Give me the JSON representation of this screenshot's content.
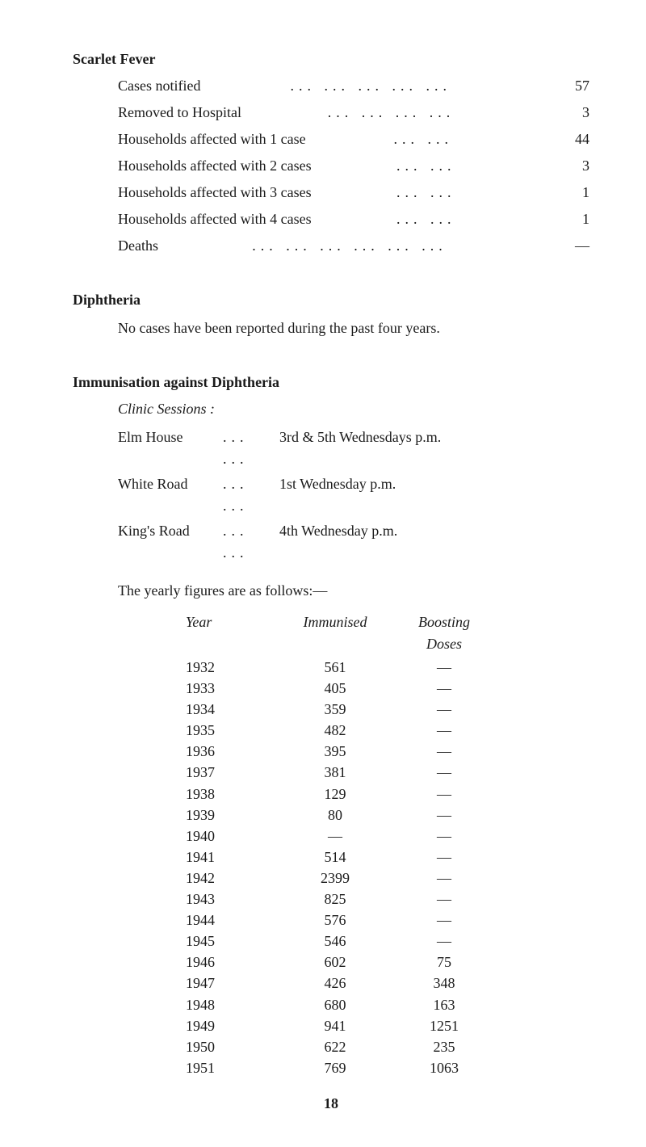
{
  "scarlet_fever": {
    "heading": "Scarlet Fever",
    "rows": [
      {
        "label": "Cases notified",
        "dots": "... ... ... ... ...",
        "value": "57"
      },
      {
        "label": "Removed to Hospital",
        "dots": "... ... ... ...",
        "value": "3"
      },
      {
        "label": "Households affected with 1 case",
        "dots": "... ...",
        "value": "44"
      },
      {
        "label": "Households affected with 2 cases",
        "dots": "... ...",
        "value": "3"
      },
      {
        "label": "Households affected with 3 cases",
        "dots": "... ...",
        "value": "1"
      },
      {
        "label": "Households affected with 4 cases",
        "dots": "... ...",
        "value": "1"
      },
      {
        "label": "Deaths",
        "dots": "... ... ... ... ... ...",
        "value": "—"
      }
    ]
  },
  "diphtheria": {
    "heading": "Diphtheria",
    "text": "No cases have been reported during the past four years."
  },
  "immunisation": {
    "heading": "Immunisation against Diphtheria",
    "subheading": "Clinic Sessions :",
    "clinics": [
      {
        "name": "Elm House",
        "dots": "... ...",
        "time": "3rd & 5th Wednesdays p.m."
      },
      {
        "name": "White Road",
        "dots": "... ...",
        "time": "1st Wednesday p.m."
      },
      {
        "name": "King's Road",
        "dots": "... ...",
        "time": "4th Wednesday p.m."
      }
    ],
    "intro": "The yearly figures are as follows:—",
    "columns": {
      "year": "Year",
      "immunised": "Immunised",
      "boosting": "Boosting\nDoses"
    },
    "col_year": "Year",
    "col_imm": "Immunised",
    "col_boost_l1": "Boosting",
    "col_boost_l2": "Doses",
    "rows": [
      {
        "year": "1932",
        "immunised": "561",
        "boosting": "—"
      },
      {
        "year": "1933",
        "immunised": "405",
        "boosting": "—"
      },
      {
        "year": "1934",
        "immunised": "359",
        "boosting": "—"
      },
      {
        "year": "1935",
        "immunised": "482",
        "boosting": "—"
      },
      {
        "year": "1936",
        "immunised": "395",
        "boosting": "—"
      },
      {
        "year": "1937",
        "immunised": "381",
        "boosting": "—"
      },
      {
        "year": "1938",
        "immunised": "129",
        "boosting": "—"
      },
      {
        "year": "1939",
        "immunised": "80",
        "boosting": "—"
      },
      {
        "year": "1940",
        "immunised": "—",
        "boosting": "—"
      },
      {
        "year": "1941",
        "immunised": "514",
        "boosting": "—"
      },
      {
        "year": "1942",
        "immunised": "2399",
        "boosting": "—"
      },
      {
        "year": "1943",
        "immunised": "825",
        "boosting": "—"
      },
      {
        "year": "1944",
        "immunised": "576",
        "boosting": "—"
      },
      {
        "year": "1945",
        "immunised": "546",
        "boosting": "—"
      },
      {
        "year": "1946",
        "immunised": "602",
        "boosting": "75"
      },
      {
        "year": "1947",
        "immunised": "426",
        "boosting": "348"
      },
      {
        "year": "1948",
        "immunised": "680",
        "boosting": "163"
      },
      {
        "year": "1949",
        "immunised": "941",
        "boosting": "1251"
      },
      {
        "year": "1950",
        "immunised": "622",
        "boosting": "235"
      },
      {
        "year": "1951",
        "immunised": "769",
        "boosting": "1063"
      }
    ]
  },
  "page_number": "18",
  "colors": {
    "text": "#1a1a1a",
    "background": "#ffffff"
  },
  "fonts": {
    "body_family": "Georgia, Times New Roman, serif",
    "body_size_pt": 14,
    "heading_weight": "bold"
  }
}
